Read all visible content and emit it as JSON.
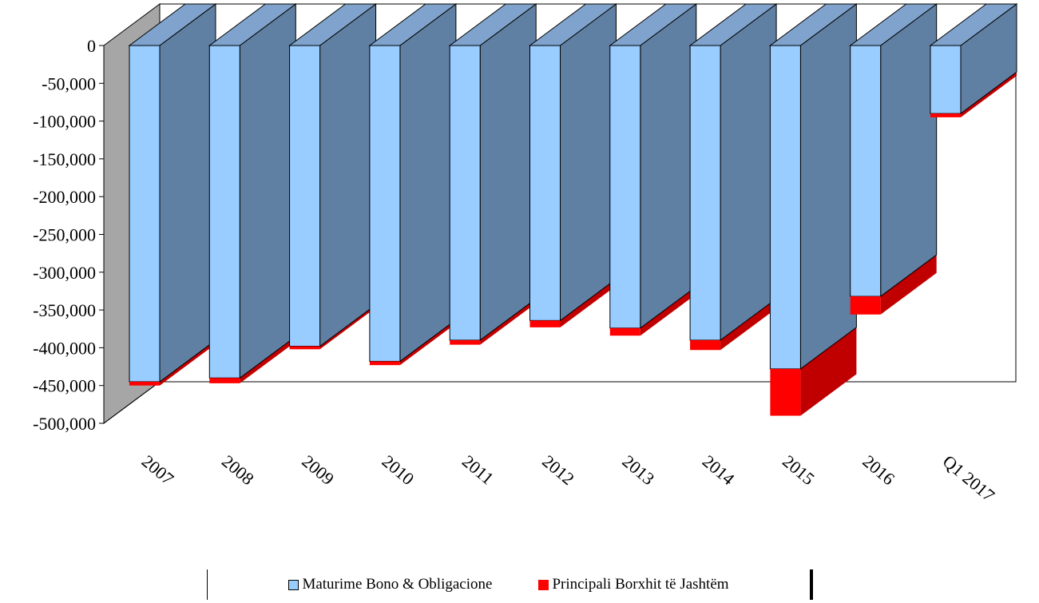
{
  "chart_data": {
    "type": "bar",
    "stacked": true,
    "three_d": true,
    "categories": [
      "2007",
      "2008",
      "2009",
      "2010",
      "2011",
      "2012",
      "2013",
      "2014",
      "2015",
      "2016",
      "Q1 2017"
    ],
    "series": [
      {
        "name": "Maturime Bono & Obligacione",
        "color": "#99ccff",
        "values": [
          -445000,
          -440000,
          -398000,
          -418000,
          -390000,
          -364000,
          -374000,
          -390000,
          -428000,
          -332000,
          -90000
        ]
      },
      {
        "name": "Principali Borxhit të Jashtëm",
        "color": "#ff0000",
        "values": [
          -5000,
          -7000,
          -4000,
          -5000,
          -6000,
          -9000,
          -10000,
          -13000,
          -62000,
          -24000,
          -5000
        ]
      }
    ],
    "y_ticks": [
      "0",
      "-50,000",
      "-100,000",
      "-150,000",
      "-200,000",
      "-250,000",
      "-300,000",
      "-350,000",
      "-400,000",
      "-450,000",
      "-500,000"
    ],
    "ylim": [
      -500000,
      0
    ],
    "legend_position": "bottom",
    "colors": {
      "back_wall": "#ffffff",
      "side_wall": "#a6a6a6",
      "bar_side": "#5f7fa3",
      "bar_top": "#7fa3cc",
      "red_side": "#c00000"
    }
  }
}
